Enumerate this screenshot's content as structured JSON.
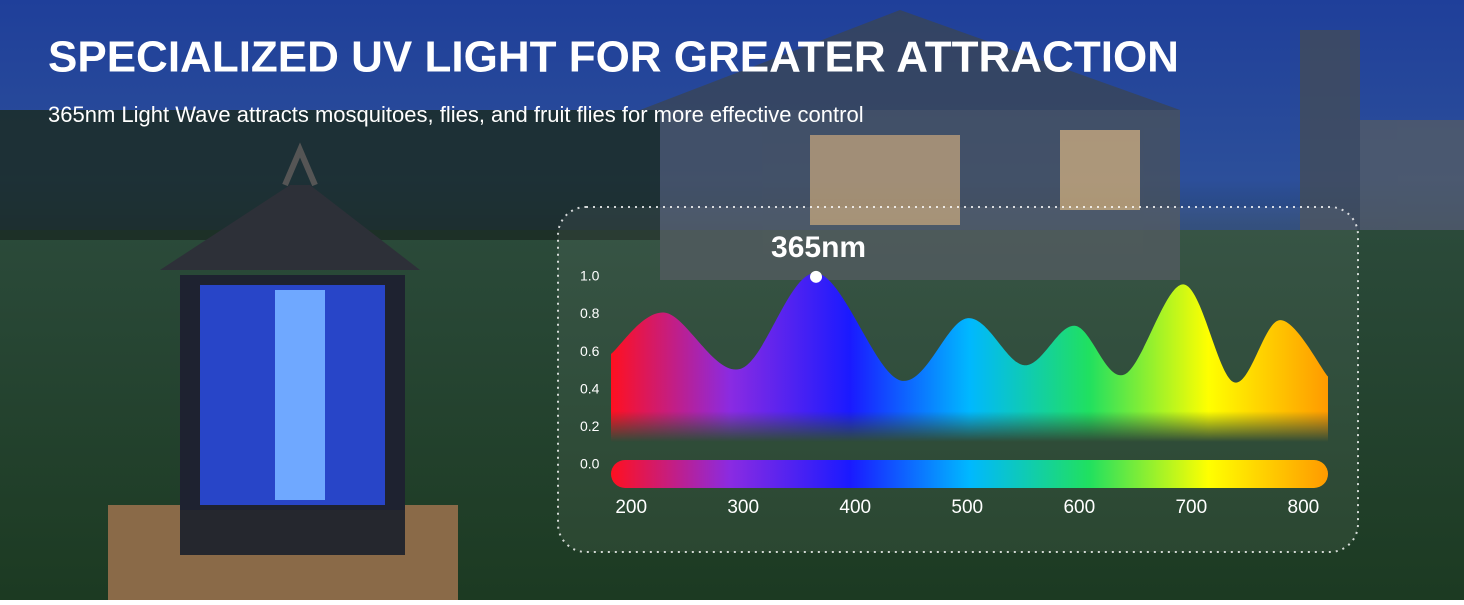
{
  "header": {
    "title": "SPECIALIZED UV LIGHT FOR GREATER ATTRACTION",
    "subtitle": "365nm Light Wave attracts mosquitoes, flies, and fruit flies for more effective control"
  },
  "chart_data": {
    "type": "area",
    "x": [
      182,
      230,
      297,
      365,
      440,
      500,
      551,
      596,
      640,
      693,
      738,
      779,
      822
    ],
    "values": [
      0.59,
      0.81,
      0.51,
      1.02,
      0.45,
      0.78,
      0.53,
      0.74,
      0.48,
      0.96,
      0.44,
      0.77,
      0.47
    ],
    "colors": [
      "#ff1020",
      "#8a2be2",
      "#1a1aff",
      "#00b8ff",
      "#20e060",
      "#ffff00",
      "#ff9a00"
    ],
    "xlim": [
      182,
      822
    ],
    "xticks": [
      200,
      300,
      400,
      500,
      600,
      700,
      800
    ],
    "ylim": [
      0,
      1.1
    ],
    "yticks": [
      {
        "value": 0,
        "label": "0.0"
      },
      0.2,
      0.4,
      0.6,
      0.8,
      {
        "value": 1,
        "label": "1.0"
      }
    ],
    "annotation": {
      "x": 365,
      "y": 1.0,
      "label": "365nm"
    }
  }
}
